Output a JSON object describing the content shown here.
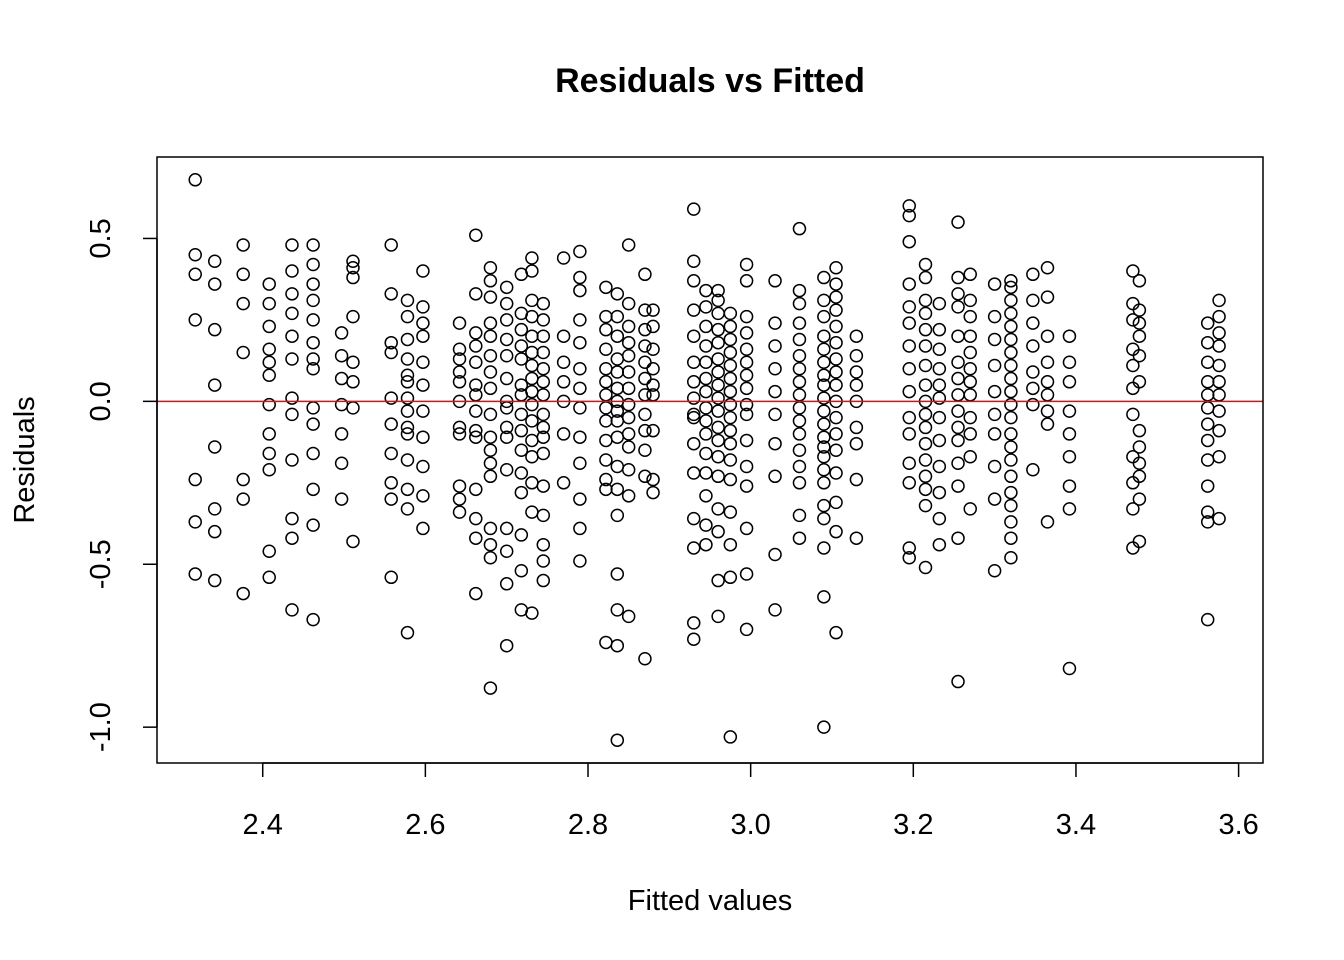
{
  "chart_data": {
    "type": "scatter",
    "title": "Residuals vs Fitted",
    "xlabel": "Fitted values",
    "ylabel": "Residuals",
    "xlim": [
      2.27,
      3.63
    ],
    "ylim": [
      -1.11,
      0.75
    ],
    "x_ticks": [
      2.4,
      2.6,
      2.8,
      3.0,
      3.2,
      3.4,
      3.6
    ],
    "x_tick_labels": [
      "2.4",
      "2.6",
      "2.8",
      "3.0",
      "3.2",
      "3.4",
      "3.6"
    ],
    "y_ticks": [
      -1.0,
      -0.5,
      0.0,
      0.5
    ],
    "y_tick_labels": [
      "-1.0",
      "-0.5",
      "0.0",
      "0.5"
    ],
    "reference_line": {
      "y": 0,
      "color": "#ff0000"
    },
    "marker": "open-circle",
    "point_color": "#000000",
    "grid": false,
    "columns": [
      {
        "x": 2.317,
        "y": [
          0.68,
          0.45,
          0.39,
          0.25,
          -0.24,
          -0.37,
          -0.53
        ]
      },
      {
        "x": 2.341,
        "y": [
          0.43,
          0.36,
          0.22,
          0.05,
          -0.14,
          -0.33,
          -0.4,
          -0.55
        ]
      },
      {
        "x": 2.376,
        "y": [
          0.48,
          0.39,
          0.3,
          0.15,
          -0.24,
          -0.3,
          -0.59
        ]
      },
      {
        "x": 2.408,
        "y": [
          0.36,
          0.3,
          0.23,
          0.16,
          0.12,
          0.08,
          -0.01,
          -0.1,
          -0.16,
          -0.21,
          -0.46,
          -0.54
        ]
      },
      {
        "x": 2.436,
        "y": [
          0.48,
          0.4,
          0.33,
          0.27,
          0.2,
          0.13,
          0.01,
          -0.04,
          -0.18,
          -0.36,
          -0.42,
          -0.64
        ]
      },
      {
        "x": 2.462,
        "y": [
          0.48,
          0.42,
          0.36,
          0.31,
          0.25,
          0.18,
          0.13,
          0.1,
          -0.02,
          -0.07,
          -0.16,
          -0.27,
          -0.38,
          -0.67
        ]
      },
      {
        "x": 2.497,
        "y": [
          0.21,
          0.14,
          0.07,
          -0.01,
          -0.1,
          -0.19,
          -0.3
        ]
      },
      {
        "x": 2.511,
        "y": [
          0.43,
          0.41,
          0.38,
          0.26,
          0.12,
          0.06,
          -0.02,
          -0.43
        ]
      },
      {
        "x": 2.558,
        "y": [
          0.48,
          0.33,
          0.18,
          0.15,
          0.01,
          -0.07,
          -0.16,
          -0.25,
          -0.3,
          -0.54
        ]
      },
      {
        "x": 2.578,
        "y": [
          0.31,
          0.26,
          0.19,
          0.13,
          0.08,
          0.06,
          0.01,
          -0.03,
          -0.08,
          -0.1,
          -0.18,
          -0.27,
          -0.33,
          -0.71
        ]
      },
      {
        "x": 2.597,
        "y": [
          0.4,
          0.29,
          0.24,
          0.2,
          0.12,
          0.05,
          -0.03,
          -0.11,
          -0.2,
          -0.29,
          -0.39
        ]
      },
      {
        "x": 2.642,
        "y": [
          0.24,
          0.16,
          0.13,
          0.09,
          0.06,
          0.0,
          -0.08,
          -0.1,
          -0.26,
          -0.3,
          -0.34
        ]
      },
      {
        "x": 2.662,
        "y": [
          0.51,
          0.33,
          0.21,
          0.17,
          0.12,
          0.05,
          0.02,
          -0.03,
          -0.09,
          -0.11,
          -0.27,
          -0.36,
          -0.42,
          -0.59
        ]
      },
      {
        "x": 2.68,
        "y": [
          0.41,
          0.37,
          0.32,
          0.24,
          0.2,
          0.14,
          0.09,
          0.04,
          -0.04,
          -0.11,
          -0.15,
          -0.19,
          -0.23,
          -0.39,
          -0.44,
          -0.48,
          -0.88
        ]
      },
      {
        "x": 2.7,
        "y": [
          0.35,
          0.3,
          0.25,
          0.19,
          0.14,
          0.07,
          0.0,
          -0.02,
          -0.08,
          -0.11,
          -0.21,
          -0.39,
          -0.46,
          -0.56,
          -0.75
        ]
      },
      {
        "x": 2.718,
        "y": [
          0.39,
          0.27,
          0.22,
          0.17,
          0.13,
          0.05,
          0.02,
          -0.04,
          -0.09,
          -0.15,
          -0.22,
          -0.28,
          -0.41,
          -0.52,
          -0.64
        ]
      },
      {
        "x": 2.731,
        "y": [
          0.44,
          0.4,
          0.31,
          0.26,
          0.2,
          0.15,
          0.11,
          0.07,
          0.03,
          -0.01,
          -0.06,
          -0.12,
          -0.17,
          -0.25,
          -0.34,
          -0.65
        ]
      },
      {
        "x": 2.745,
        "y": [
          0.3,
          0.25,
          0.2,
          0.15,
          0.1,
          0.06,
          0.02,
          -0.04,
          -0.08,
          -0.11,
          -0.16,
          -0.26,
          -0.35,
          -0.44,
          -0.49,
          -0.55
        ]
      },
      {
        "x": 2.77,
        "y": [
          0.44,
          0.2,
          0.12,
          0.06,
          0.0,
          -0.1,
          -0.25
        ]
      },
      {
        "x": 2.79,
        "y": [
          0.46,
          0.38,
          0.34,
          0.25,
          0.18,
          0.1,
          0.04,
          -0.02,
          -0.11,
          -0.19,
          -0.3,
          -0.39,
          -0.49
        ]
      },
      {
        "x": 2.822,
        "y": [
          0.35,
          0.26,
          0.22,
          0.16,
          0.1,
          0.06,
          0.02,
          -0.02,
          -0.06,
          -0.12,
          -0.18,
          -0.24,
          -0.27,
          -0.74
        ]
      },
      {
        "x": 2.836,
        "y": [
          0.33,
          0.26,
          0.2,
          0.13,
          0.09,
          0.04,
          0.0,
          -0.03,
          -0.06,
          -0.11,
          -0.2,
          -0.27,
          -0.35,
          -0.53,
          -0.64,
          -0.75,
          -1.04
        ]
      },
      {
        "x": 2.85,
        "y": [
          0.48,
          0.3,
          0.23,
          0.18,
          0.14,
          0.09,
          0.04,
          -0.01,
          -0.05,
          -0.1,
          -0.14,
          -0.21,
          -0.29,
          -0.66
        ]
      },
      {
        "x": 2.87,
        "y": [
          0.39,
          0.28,
          0.22,
          0.17,
          0.12,
          0.07,
          0.02,
          -0.04,
          -0.09,
          -0.15,
          -0.23,
          -0.79
        ]
      },
      {
        "x": 2.88,
        "y": [
          0.28,
          0.23,
          0.16,
          0.1,
          0.05,
          0.02,
          -0.09,
          -0.24,
          -0.28
        ]
      },
      {
        "x": 2.93,
        "y": [
          0.59,
          0.43,
          0.37,
          0.28,
          0.2,
          0.12,
          0.06,
          0.01,
          -0.04,
          -0.05,
          -0.13,
          -0.22,
          -0.36,
          -0.45,
          -0.68,
          -0.73
        ]
      },
      {
        "x": 2.945,
        "y": [
          0.34,
          0.29,
          0.23,
          0.17,
          0.12,
          0.07,
          0.03,
          -0.02,
          -0.06,
          -0.1,
          -0.16,
          -0.22,
          -0.29,
          -0.38,
          -0.44
        ]
      },
      {
        "x": 2.96,
        "y": [
          0.34,
          0.31,
          0.27,
          0.22,
          0.18,
          0.13,
          0.09,
          0.05,
          0.01,
          -0.03,
          -0.08,
          -0.12,
          -0.17,
          -0.23,
          -0.33,
          -0.4,
          -0.55,
          -0.66
        ]
      },
      {
        "x": 2.975,
        "y": [
          0.27,
          0.23,
          0.19,
          0.15,
          0.11,
          0.07,
          0.03,
          -0.01,
          -0.05,
          -0.09,
          -0.13,
          -0.18,
          -0.24,
          -0.34,
          -0.44,
          -0.54,
          -1.03
        ]
      },
      {
        "x": 2.995,
        "y": [
          0.42,
          0.37,
          0.26,
          0.21,
          0.16,
          0.12,
          0.08,
          0.04,
          -0.01,
          -0.04,
          -0.12,
          -0.2,
          -0.26,
          -0.39,
          -0.53,
          -0.7
        ]
      },
      {
        "x": 3.03,
        "y": [
          0.37,
          0.24,
          0.17,
          0.1,
          0.03,
          -0.04,
          -0.13,
          -0.23,
          -0.47,
          -0.64
        ]
      },
      {
        "x": 3.06,
        "y": [
          0.53,
          0.34,
          0.3,
          0.24,
          0.19,
          0.14,
          0.1,
          0.06,
          0.02,
          -0.02,
          -0.06,
          -0.1,
          -0.15,
          -0.2,
          -0.25,
          -0.35,
          -0.42
        ]
      },
      {
        "x": 3.09,
        "y": [
          0.38,
          0.31,
          0.26,
          0.2,
          0.16,
          0.12,
          0.08,
          0.05,
          0.01,
          -0.03,
          -0.07,
          -0.11,
          -0.14,
          -0.17,
          -0.21,
          -0.25,
          -0.32,
          -0.36,
          -0.45,
          -0.6,
          -1.0
        ]
      },
      {
        "x": 3.105,
        "y": [
          0.41,
          0.36,
          0.32,
          0.28,
          0.23,
          0.18,
          0.13,
          0.09,
          0.05,
          0.0,
          -0.05,
          -0.1,
          -0.15,
          -0.22,
          -0.31,
          -0.4,
          -0.71
        ]
      },
      {
        "x": 3.13,
        "y": [
          0.2,
          0.14,
          0.09,
          0.05,
          0.0,
          -0.08,
          -0.13,
          -0.24,
          -0.42
        ]
      },
      {
        "x": 3.195,
        "y": [
          0.6,
          0.57,
          0.49,
          0.36,
          0.29,
          0.24,
          0.17,
          0.1,
          0.03,
          -0.05,
          -0.1,
          -0.19,
          -0.25,
          -0.45,
          -0.48
        ]
      },
      {
        "x": 3.215,
        "y": [
          0.42,
          0.38,
          0.31,
          0.27,
          0.22,
          0.17,
          0.11,
          0.05,
          0.0,
          -0.04,
          -0.08,
          -0.13,
          -0.18,
          -0.23,
          -0.27,
          -0.32,
          -0.51
        ]
      },
      {
        "x": 3.232,
        "y": [
          0.3,
          0.22,
          0.16,
          0.1,
          0.05,
          0.01,
          -0.05,
          -0.12,
          -0.2,
          -0.28,
          -0.36,
          -0.44
        ]
      },
      {
        "x": 3.255,
        "y": [
          0.55,
          0.38,
          0.33,
          0.29,
          0.2,
          0.12,
          0.07,
          0.02,
          -0.03,
          -0.08,
          -0.12,
          -0.19,
          -0.26,
          -0.42,
          -0.86
        ]
      },
      {
        "x": 3.27,
        "y": [
          0.39,
          0.31,
          0.26,
          0.2,
          0.15,
          0.1,
          0.06,
          0.02,
          -0.05,
          -0.1,
          -0.17,
          -0.33
        ]
      },
      {
        "x": 3.3,
        "y": [
          0.36,
          0.26,
          0.19,
          0.11,
          0.03,
          -0.04,
          -0.1,
          -0.2,
          -0.3,
          -0.52
        ]
      },
      {
        "x": 3.32,
        "y": [
          0.37,
          0.35,
          0.31,
          0.27,
          0.23,
          0.19,
          0.15,
          0.11,
          0.07,
          0.03,
          -0.01,
          -0.05,
          -0.1,
          -0.14,
          -0.18,
          -0.23,
          -0.28,
          -0.32,
          -0.37,
          -0.42,
          -0.48
        ]
      },
      {
        "x": 3.347,
        "y": [
          0.39,
          0.31,
          0.24,
          0.17,
          0.09,
          0.04,
          -0.01,
          -0.21
        ]
      },
      {
        "x": 3.365,
        "y": [
          0.41,
          0.32,
          0.2,
          0.12,
          0.06,
          0.02,
          -0.03,
          -0.07,
          -0.37
        ]
      },
      {
        "x": 3.392,
        "y": [
          0.2,
          0.12,
          0.06,
          -0.03,
          -0.1,
          -0.17,
          -0.26,
          -0.33,
          -0.82
        ]
      },
      {
        "x": 3.47,
        "y": [
          0.4,
          0.3,
          0.25,
          0.16,
          0.11,
          0.04,
          -0.04,
          -0.17,
          -0.25,
          -0.33,
          -0.45
        ]
      },
      {
        "x": 3.478,
        "y": [
          0.37,
          0.28,
          0.24,
          0.2,
          0.14,
          0.06,
          -0.09,
          -0.14,
          -0.19,
          -0.23,
          -0.3,
          -0.43
        ]
      },
      {
        "x": 3.562,
        "y": [
          0.24,
          0.18,
          0.12,
          0.06,
          0.02,
          -0.02,
          -0.07,
          -0.12,
          -0.18,
          -0.26,
          -0.34,
          -0.37,
          -0.67
        ]
      },
      {
        "x": 3.576,
        "y": [
          0.31,
          0.26,
          0.21,
          0.17,
          0.11,
          0.06,
          0.02,
          -0.03,
          -0.09,
          -0.17,
          -0.36
        ]
      }
    ]
  }
}
